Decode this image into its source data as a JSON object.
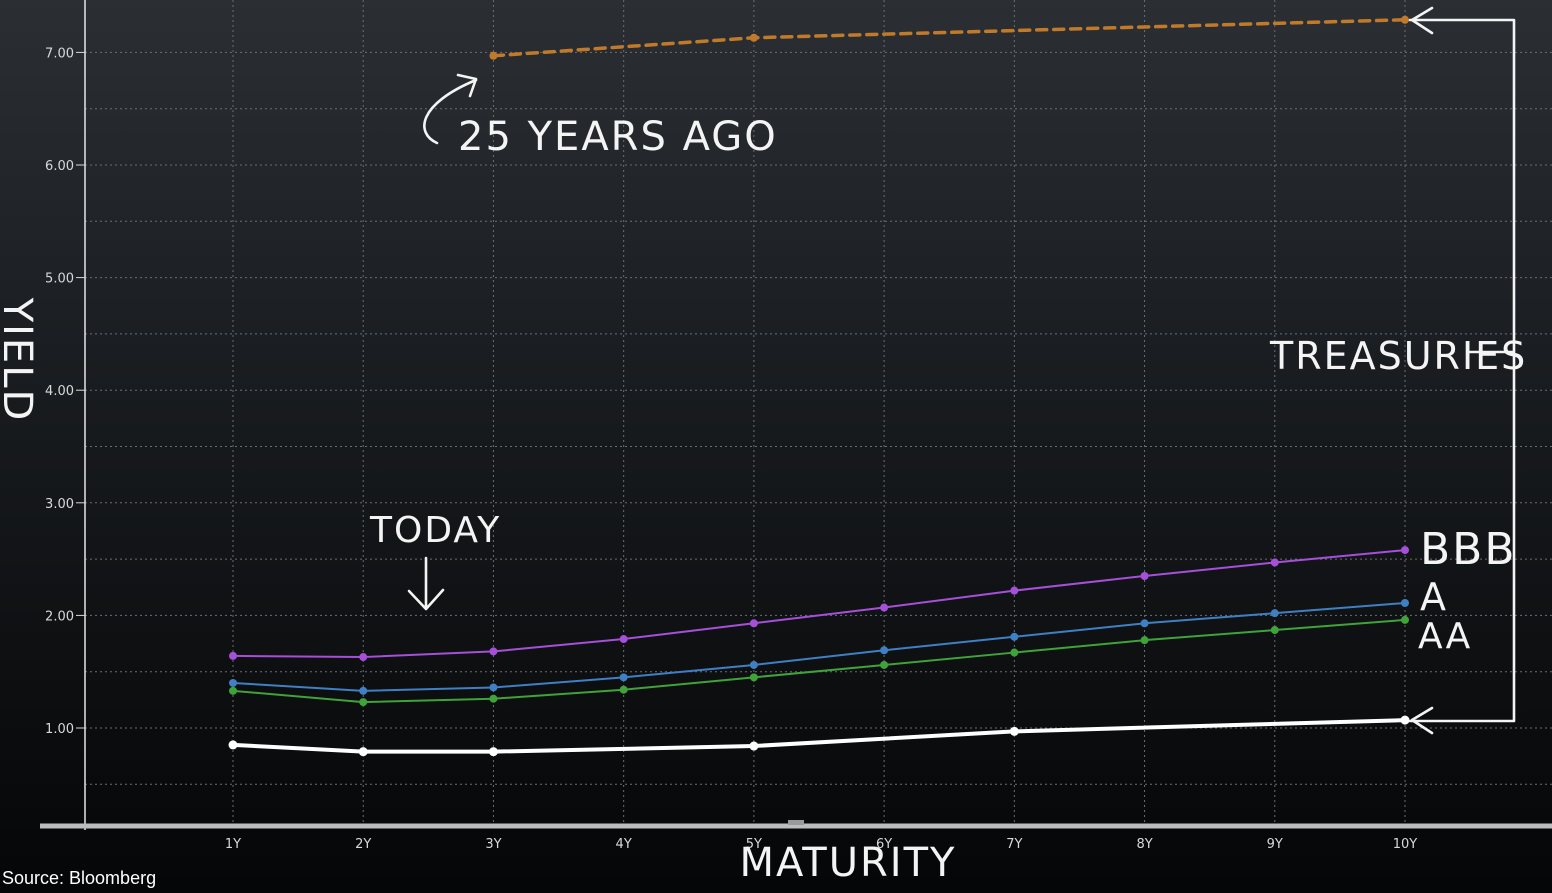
{
  "chart_data": {
    "type": "line",
    "x": [
      "1Y",
      "2Y",
      "3Y",
      "4Y",
      "5Y",
      "6Y",
      "7Y",
      "8Y",
      "9Y",
      "10Y"
    ],
    "xlabel": "MATURITY",
    "ylabel": "YIELD",
    "ylim": [
      0.05,
      7.5
    ],
    "yticks": [
      "1.00",
      "2.00",
      "3.00",
      "4.00",
      "5.00",
      "6.00",
      "7.00"
    ],
    "grid": true,
    "series": [
      {
        "name": "BBB",
        "color": "#a64fd9",
        "values": [
          1.64,
          1.63,
          1.68,
          1.79,
          1.93,
          2.07,
          2.22,
          2.35,
          2.47,
          2.58
        ]
      },
      {
        "name": "A",
        "color": "#3f7fc4",
        "values": [
          1.4,
          1.33,
          1.36,
          1.45,
          1.56,
          1.69,
          1.81,
          1.93,
          2.02,
          2.11
        ]
      },
      {
        "name": "AA",
        "color": "#3fa33a",
        "values": [
          1.33,
          1.23,
          1.26,
          1.34,
          1.45,
          1.56,
          1.67,
          1.78,
          1.87,
          1.96
        ]
      },
      {
        "color": "#ffffff",
        "values": [
          0.85,
          0.79,
          0.79,
          null,
          0.84,
          null,
          0.97,
          null,
          null,
          1.07
        ]
      },
      {
        "color": "#c07a2a",
        "dashed": true,
        "values": [
          null,
          null,
          6.97,
          null,
          7.13,
          null,
          null,
          null,
          null,
          7.29
        ]
      }
    ],
    "annotations": [
      "25 YEARS AGO",
      "TODAY",
      "TREASURIES"
    ]
  },
  "source": "Source: Bloomberg"
}
